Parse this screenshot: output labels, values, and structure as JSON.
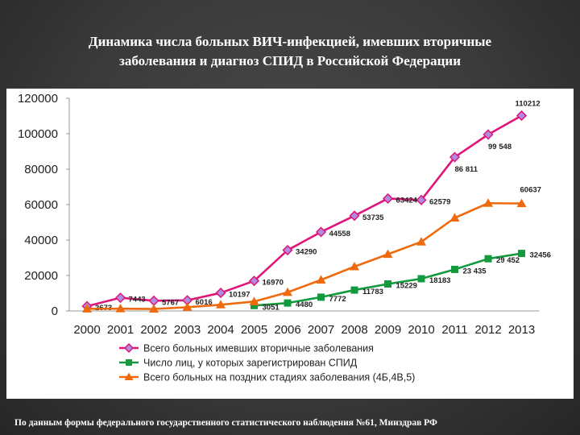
{
  "slide": {
    "title_line1": "Динамика числа больных ВИЧ-инфекцией, имевших вторичные",
    "title_line2": "заболевания и диагноз СПИД в Российской Федерации",
    "footer": "По данным формы федерального государственного статистического наблюдения №61, Минздрав РФ"
  },
  "chart_data": {
    "type": "line",
    "title": "Динамика числа больных ВИЧ-инфекцией, имевших вторичные заболевания и диагноз СПИД в Российской Федерации",
    "xlabel": "",
    "ylabel": "",
    "x": [
      "2000",
      "2001",
      "2002",
      "2003",
      "2004",
      "2005",
      "2006",
      "2007",
      "2008",
      "2009",
      "2010",
      "2011",
      "2012",
      "2013"
    ],
    "ylim": [
      0,
      120000
    ],
    "yticks": [
      0,
      20000,
      40000,
      60000,
      80000,
      100000,
      120000
    ],
    "ytick_labels": [
      "0",
      "20000",
      "40000",
      "60000",
      "80000",
      "100000",
      "120000"
    ],
    "legend_position": "bottom",
    "grid": false,
    "series": [
      {
        "name": "Всего больных имевших вторичные заболевания",
        "color": "#e0157a",
        "marker": "diamond",
        "marker_fill": "#b08ce0",
        "values": [
          2673,
          7443,
          5767,
          6016,
          10197,
          16970,
          34290,
          44558,
          53735,
          63424,
          62579,
          86811,
          99548,
          110212
        ],
        "labels": [
          "2673",
          "7443",
          "5767",
          "6016",
          "10197",
          "16970",
          "34290",
          "44558",
          "53735",
          "63424",
          "62579",
          "86 811",
          "99 548",
          "110212"
        ]
      },
      {
        "name": "Число лиц, у которых зарегистрирован СПИД",
        "color": "#139a3e",
        "marker": "square",
        "marker_fill": "#139a3e",
        "start_index": 5,
        "values": [
          null,
          null,
          null,
          null,
          null,
          3051,
          4480,
          7772,
          11783,
          15229,
          18183,
          23435,
          29452,
          32456
        ],
        "labels": [
          null,
          null,
          null,
          null,
          null,
          "3051",
          "4480",
          "7772",
          "11783",
          "15229",
          "18183",
          "23 435",
          "29 452",
          "32456"
        ]
      },
      {
        "name": "Всего больных на поздних стадиях заболевания (4Б,4В,5)",
        "color": "#ee6a0c",
        "marker": "triangle",
        "marker_fill": "#ee6a0c",
        "values": [
          1200,
          1300,
          1100,
          2100,
          3500,
          5300,
          10500,
          17500,
          25000,
          32000,
          39000,
          52500,
          60800,
          60637
        ],
        "labels": [
          null,
          null,
          null,
          null,
          null,
          null,
          null,
          null,
          null,
          null,
          null,
          null,
          null,
          "60637"
        ]
      }
    ]
  }
}
